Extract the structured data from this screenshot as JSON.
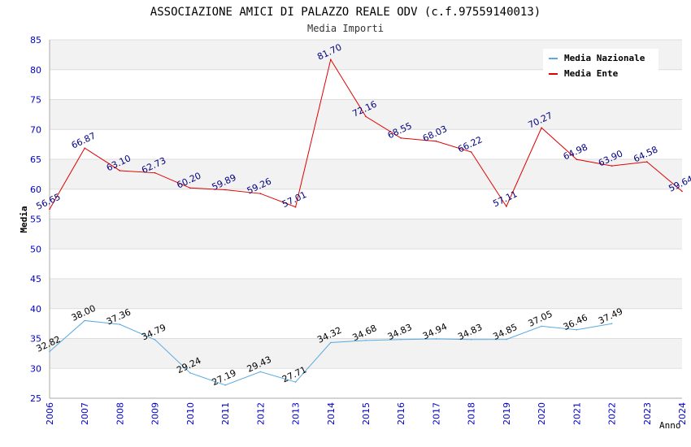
{
  "chart_data": {
    "type": "line",
    "title": "ASSOCIAZIONE AMICI DI PALAZZO REALE ODV (c.f.97559140013)",
    "subtitle": "Media Importi",
    "xlabel": "Anno",
    "ylabel": "Media",
    "ylim": [
      25,
      85
    ],
    "y_ticks": [
      "25",
      "30",
      "35",
      "40",
      "45",
      "50",
      "55",
      "60",
      "65",
      "70",
      "75",
      "80",
      "85"
    ],
    "x": [
      "2006",
      "2007",
      "2008",
      "2009",
      "2010",
      "2011",
      "2012",
      "2013",
      "2014",
      "2015",
      "2016",
      "2017",
      "2018",
      "2019",
      "2020",
      "2021",
      "2022",
      "2023",
      "2024"
    ],
    "grid": true,
    "legend_position": "top-right",
    "series": [
      {
        "name": "Media Nazionale",
        "color": "#5aaae0",
        "label_color": "#000000",
        "values": [
          32.82,
          38.0,
          37.36,
          34.79,
          29.24,
          27.19,
          29.43,
          27.71,
          34.32,
          34.68,
          34.83,
          34.94,
          34.83,
          34.85,
          37.05,
          36.46,
          37.49,
          null,
          null
        ],
        "labels": [
          "32.82",
          "38.00",
          "37.36",
          "34.79",
          "29.24",
          "27.19",
          "29.43",
          "27.71",
          "34.32",
          "34.68",
          "34.83",
          "34.94",
          "34.83",
          "34.85",
          "37.05",
          "36.46",
          "37.49",
          null,
          null
        ]
      },
      {
        "name": "Media Ente",
        "color": "#e00000",
        "label_color": "#000080",
        "values": [
          56.65,
          66.87,
          63.1,
          62.73,
          60.2,
          59.89,
          59.26,
          57.01,
          81.7,
          72.16,
          68.55,
          68.03,
          66.22,
          57.11,
          70.27,
          64.98,
          63.9,
          64.58,
          59.64
        ],
        "labels": [
          "56.65",
          "66.87",
          "63.10",
          "62.73",
          "60.20",
          "59.89",
          "59.26",
          "57.01",
          "81.70",
          "72.16",
          "68.55",
          "68.03",
          "66.22",
          "57.11",
          "70.27",
          "64.98",
          "63.90",
          "64.58",
          "59.64"
        ]
      }
    ],
    "colors": {
      "axis_tick_text": "#0000cc",
      "band_fill": "#f2f2f2",
      "grid_line": "#dddddd"
    }
  }
}
